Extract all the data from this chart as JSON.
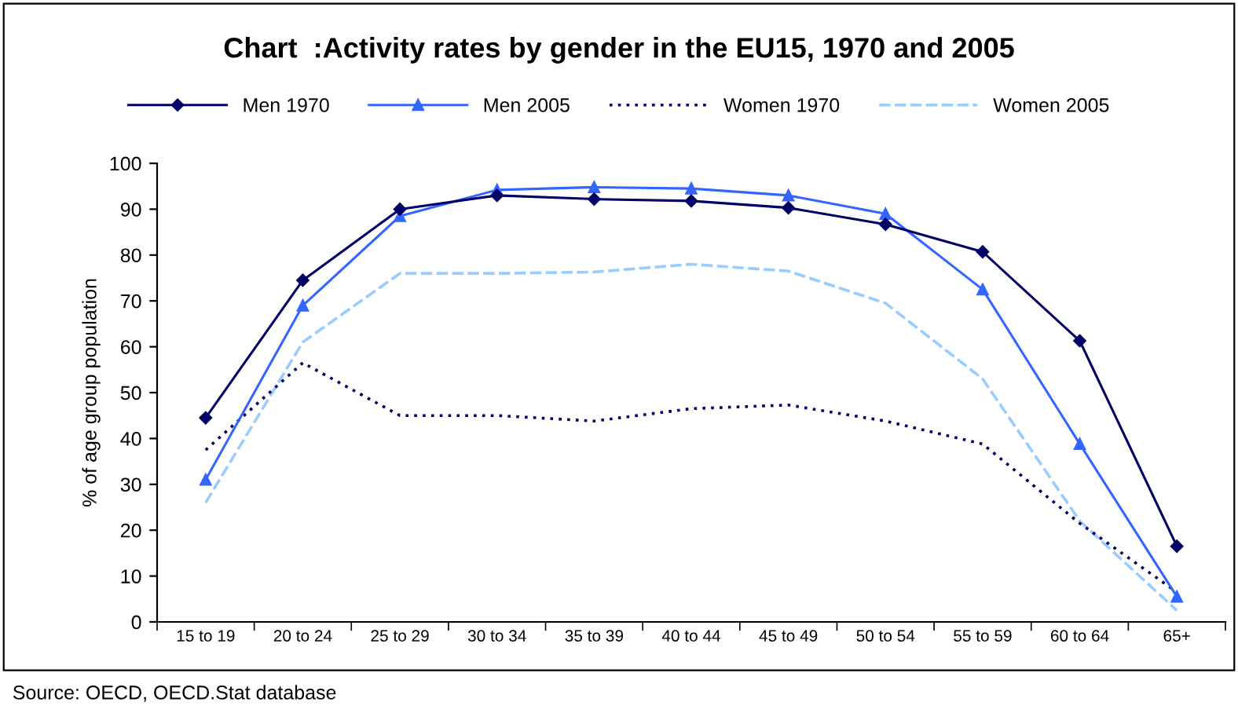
{
  "chart_data": {
    "type": "line",
    "title": "Chart  :Activity rates by gender in the EU15, 1970 and 2005",
    "ylabel": "% of age group population",
    "categories": [
      "15 to 19",
      "20 to 24",
      "25 to 29",
      "30 to 34",
      "35 to 39",
      "40 to 44",
      "45 to 49",
      "50 to 54",
      "55 to 59",
      "60 to 64",
      "65+"
    ],
    "series": [
      {
        "name": "Men 1970",
        "color": "#000066",
        "marker": "diamond",
        "line_style": "solid",
        "values": [
          44.5,
          74.5,
          90,
          93,
          92.2,
          91.8,
          90.3,
          86.7,
          80.7,
          61.3,
          16.5
        ]
      },
      {
        "name": "Men 2005",
        "color": "#3366ff",
        "marker": "triangle",
        "line_style": "solid",
        "values": [
          31,
          69,
          88.5,
          94.2,
          94.8,
          94.5,
          93,
          89,
          72.5,
          38.8,
          5.5
        ]
      },
      {
        "name": "Women 1970",
        "color": "#000066",
        "marker": "none",
        "line_style": "dotted",
        "values": [
          37.5,
          56.5,
          45,
          45,
          43.8,
          46.5,
          47.3,
          43.8,
          38.8,
          21.5,
          6.5
        ]
      },
      {
        "name": "Women 2005",
        "color": "#99ccff",
        "marker": "none",
        "line_style": "dashed",
        "values": [
          26,
          61,
          76,
          76,
          76.3,
          78,
          76.5,
          69.5,
          53,
          22,
          2.5
        ]
      }
    ],
    "ylim": [
      0,
      100
    ],
    "yticks": [
      0,
      10,
      20,
      30,
      40,
      50,
      60,
      70,
      80,
      90,
      100
    ],
    "grid": false,
    "legend": "top",
    "annotations": [
      "Source: OECD, OECD.Stat database"
    ]
  }
}
